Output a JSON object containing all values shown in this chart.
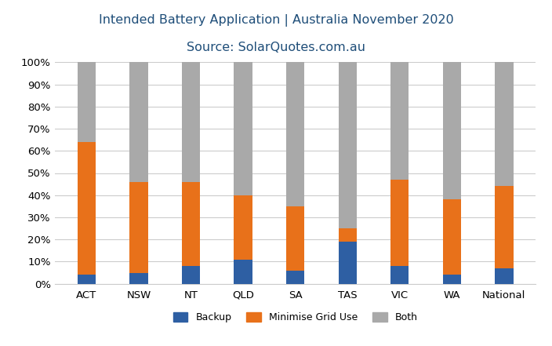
{
  "categories": [
    "ACT",
    "NSW",
    "NT",
    "QLD",
    "SA",
    "TAS",
    "VIC",
    "WA",
    "National"
  ],
  "backup": [
    4,
    5,
    8,
    11,
    6,
    19,
    8,
    4,
    7
  ],
  "minimise_grid": [
    60,
    41,
    38,
    29,
    29,
    6,
    39,
    34,
    37
  ],
  "both": [
    36,
    54,
    54,
    60,
    65,
    75,
    53,
    62,
    56
  ],
  "backup_color": "#2E5FA3",
  "minimise_color": "#E8711A",
  "both_color": "#A9A9A9",
  "title_line1": "Intended Battery Application | Australia November 2020",
  "title_line2": "Source: SolarQuotes.com.au",
  "ytick_labels": [
    "0%",
    "10%",
    "20%",
    "30%",
    "40%",
    "50%",
    "60%",
    "70%",
    "80%",
    "90%",
    "100%"
  ],
  "legend_labels": [
    "Backup",
    "Minimise Grid Use",
    "Both"
  ],
  "bg_color": "#FFFFFF",
  "grid_color": "#CCCCCC",
  "title_color": "#1F4E79",
  "bar_width": 0.35,
  "figsize": [
    7.04,
    4.41
  ],
  "dpi": 100
}
